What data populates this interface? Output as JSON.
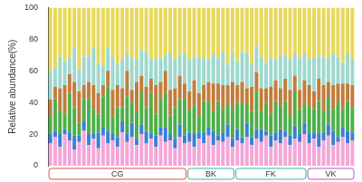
{
  "chart_data": {
    "type": "bar",
    "stacked": true,
    "grid": false,
    "tick_labels": "y",
    "y_label": "Relative abundance(%)",
    "ylim": [
      0,
      100
    ],
    "yticks": [
      0,
      20,
      40,
      60,
      80,
      100
    ],
    "categories": [
      null,
      null,
      null,
      null,
      null,
      null,
      null,
      null,
      null,
      null,
      null,
      null,
      null,
      null,
      null,
      null,
      null,
      null,
      null,
      null,
      null,
      null,
      null,
      null,
      null,
      null,
      null,
      null,
      null,
      null,
      null,
      null,
      null,
      null,
      null,
      null,
      null,
      null,
      null,
      null,
      null,
      null,
      null,
      null,
      null,
      null,
      null,
      null,
      null,
      null,
      null,
      null,
      null,
      null,
      null,
      null,
      null,
      null,
      null,
      null,
      null,
      null,
      null,
      null
    ],
    "groups": [
      {
        "label": "CG",
        "size": 29,
        "color": "#d9534f"
      },
      {
        "label": "BK",
        "size": 10,
        "color": "#3cb7a0"
      },
      {
        "label": "FK",
        "size": 15,
        "color": "#3cb7a0"
      },
      {
        "label": "VK",
        "size": 10,
        "color": "#b15cc0"
      }
    ],
    "series": [
      {
        "color": "#f4a6d7",
        "values": [
          14,
          18,
          12,
          20,
          16,
          10,
          15,
          22,
          13,
          17,
          11,
          19,
          14,
          16,
          12,
          21,
          15,
          18,
          13,
          20,
          14,
          17,
          12,
          19,
          15,
          16,
          11,
          18,
          14,
          15,
          12,
          17,
          14,
          19,
          13,
          16,
          15,
          18,
          12,
          16,
          14,
          18,
          13,
          17,
          15,
          19,
          12,
          16,
          14,
          18,
          13,
          17,
          15,
          20,
          14,
          17,
          12,
          16,
          19,
          13,
          15,
          18,
          14,
          16
        ]
      },
      {
        "color": "#3a7fd5",
        "values": [
          6,
          4,
          8,
          3,
          5,
          9,
          4,
          6,
          7,
          3,
          10,
          5,
          8,
          4,
          6,
          7,
          5,
          9,
          4,
          6,
          8,
          3,
          7,
          5,
          9,
          4,
          6,
          8,
          5,
          6,
          8,
          4,
          7,
          5,
          9,
          3,
          6,
          8,
          5,
          7,
          4,
          9,
          5,
          6,
          8,
          3,
          7,
          5,
          9,
          4,
          6,
          8,
          5,
          7,
          6,
          4,
          8,
          5,
          7,
          9,
          3,
          6,
          8,
          5
        ]
      },
      {
        "color": "#4daf4a",
        "values": [
          12,
          20,
          15,
          10,
          25,
          18,
          8,
          14,
          22,
          16,
          12,
          20,
          28,
          11,
          19,
          9,
          24,
          13,
          17,
          21,
          15,
          26,
          14,
          18,
          22,
          12,
          20,
          16,
          23,
          14,
          18,
          11,
          20,
          16,
          12,
          22,
          15,
          13,
          19,
          17,
          21,
          12,
          16,
          24,
          11,
          18,
          14,
          20,
          15,
          19,
          13,
          22,
          16,
          12,
          18,
          15,
          21,
          13,
          17,
          14,
          22,
          12,
          19,
          16
        ]
      },
      {
        "color": "#c27c3a",
        "values": [
          10,
          8,
          14,
          18,
          12,
          16,
          20,
          9,
          11,
          15,
          13,
          7,
          10,
          17,
          14,
          12,
          16,
          8,
          19,
          10,
          13,
          9,
          18,
          11,
          14,
          16,
          12,
          15,
          10,
          12,
          16,
          14,
          10,
          13,
          18,
          11,
          15,
          12,
          17,
          11,
          14,
          10,
          16,
          12,
          15,
          9,
          17,
          13,
          11,
          14,
          16,
          10,
          12,
          15,
          13,
          11,
          14,
          17,
          10,
          15,
          12,
          16,
          11,
          14
        ]
      },
      {
        "color": "#9fd8cf",
        "values": [
          18,
          12,
          20,
          15,
          10,
          22,
          14,
          18,
          16,
          24,
          19,
          12,
          15,
          21,
          13,
          18,
          11,
          20,
          14,
          16,
          22,
          12,
          17,
          15,
          10,
          23,
          18,
          13,
          19,
          20,
          15,
          22,
          17,
          14,
          19,
          16,
          21,
          13,
          18,
          15,
          19,
          22,
          14,
          17,
          20,
          16,
          18,
          13,
          21,
          15,
          19,
          14,
          20,
          17,
          16,
          21,
          14,
          18,
          15,
          20,
          17,
          13,
          19,
          16
        ]
      },
      {
        "color": "#e8d85a",
        "values": [
          40,
          38,
          31,
          34,
          32,
          25,
          39,
          31,
          31,
          25,
          35,
          37,
          25,
          31,
          36,
          33,
          29,
          32,
          33,
          27,
          28,
          33,
          32,
          32,
          30,
          29,
          33,
          30,
          29,
          33,
          31,
          32,
          32,
          33,
          29,
          32,
          28,
          36,
          29,
          34,
          28,
          29,
          36,
          24,
          31,
          35,
          32,
          33,
          30,
          30,
          33,
          29,
          32,
          29,
          33,
          32,
          31,
          31,
          32,
          29,
          31,
          35,
          29,
          33
        ]
      }
    ]
  }
}
